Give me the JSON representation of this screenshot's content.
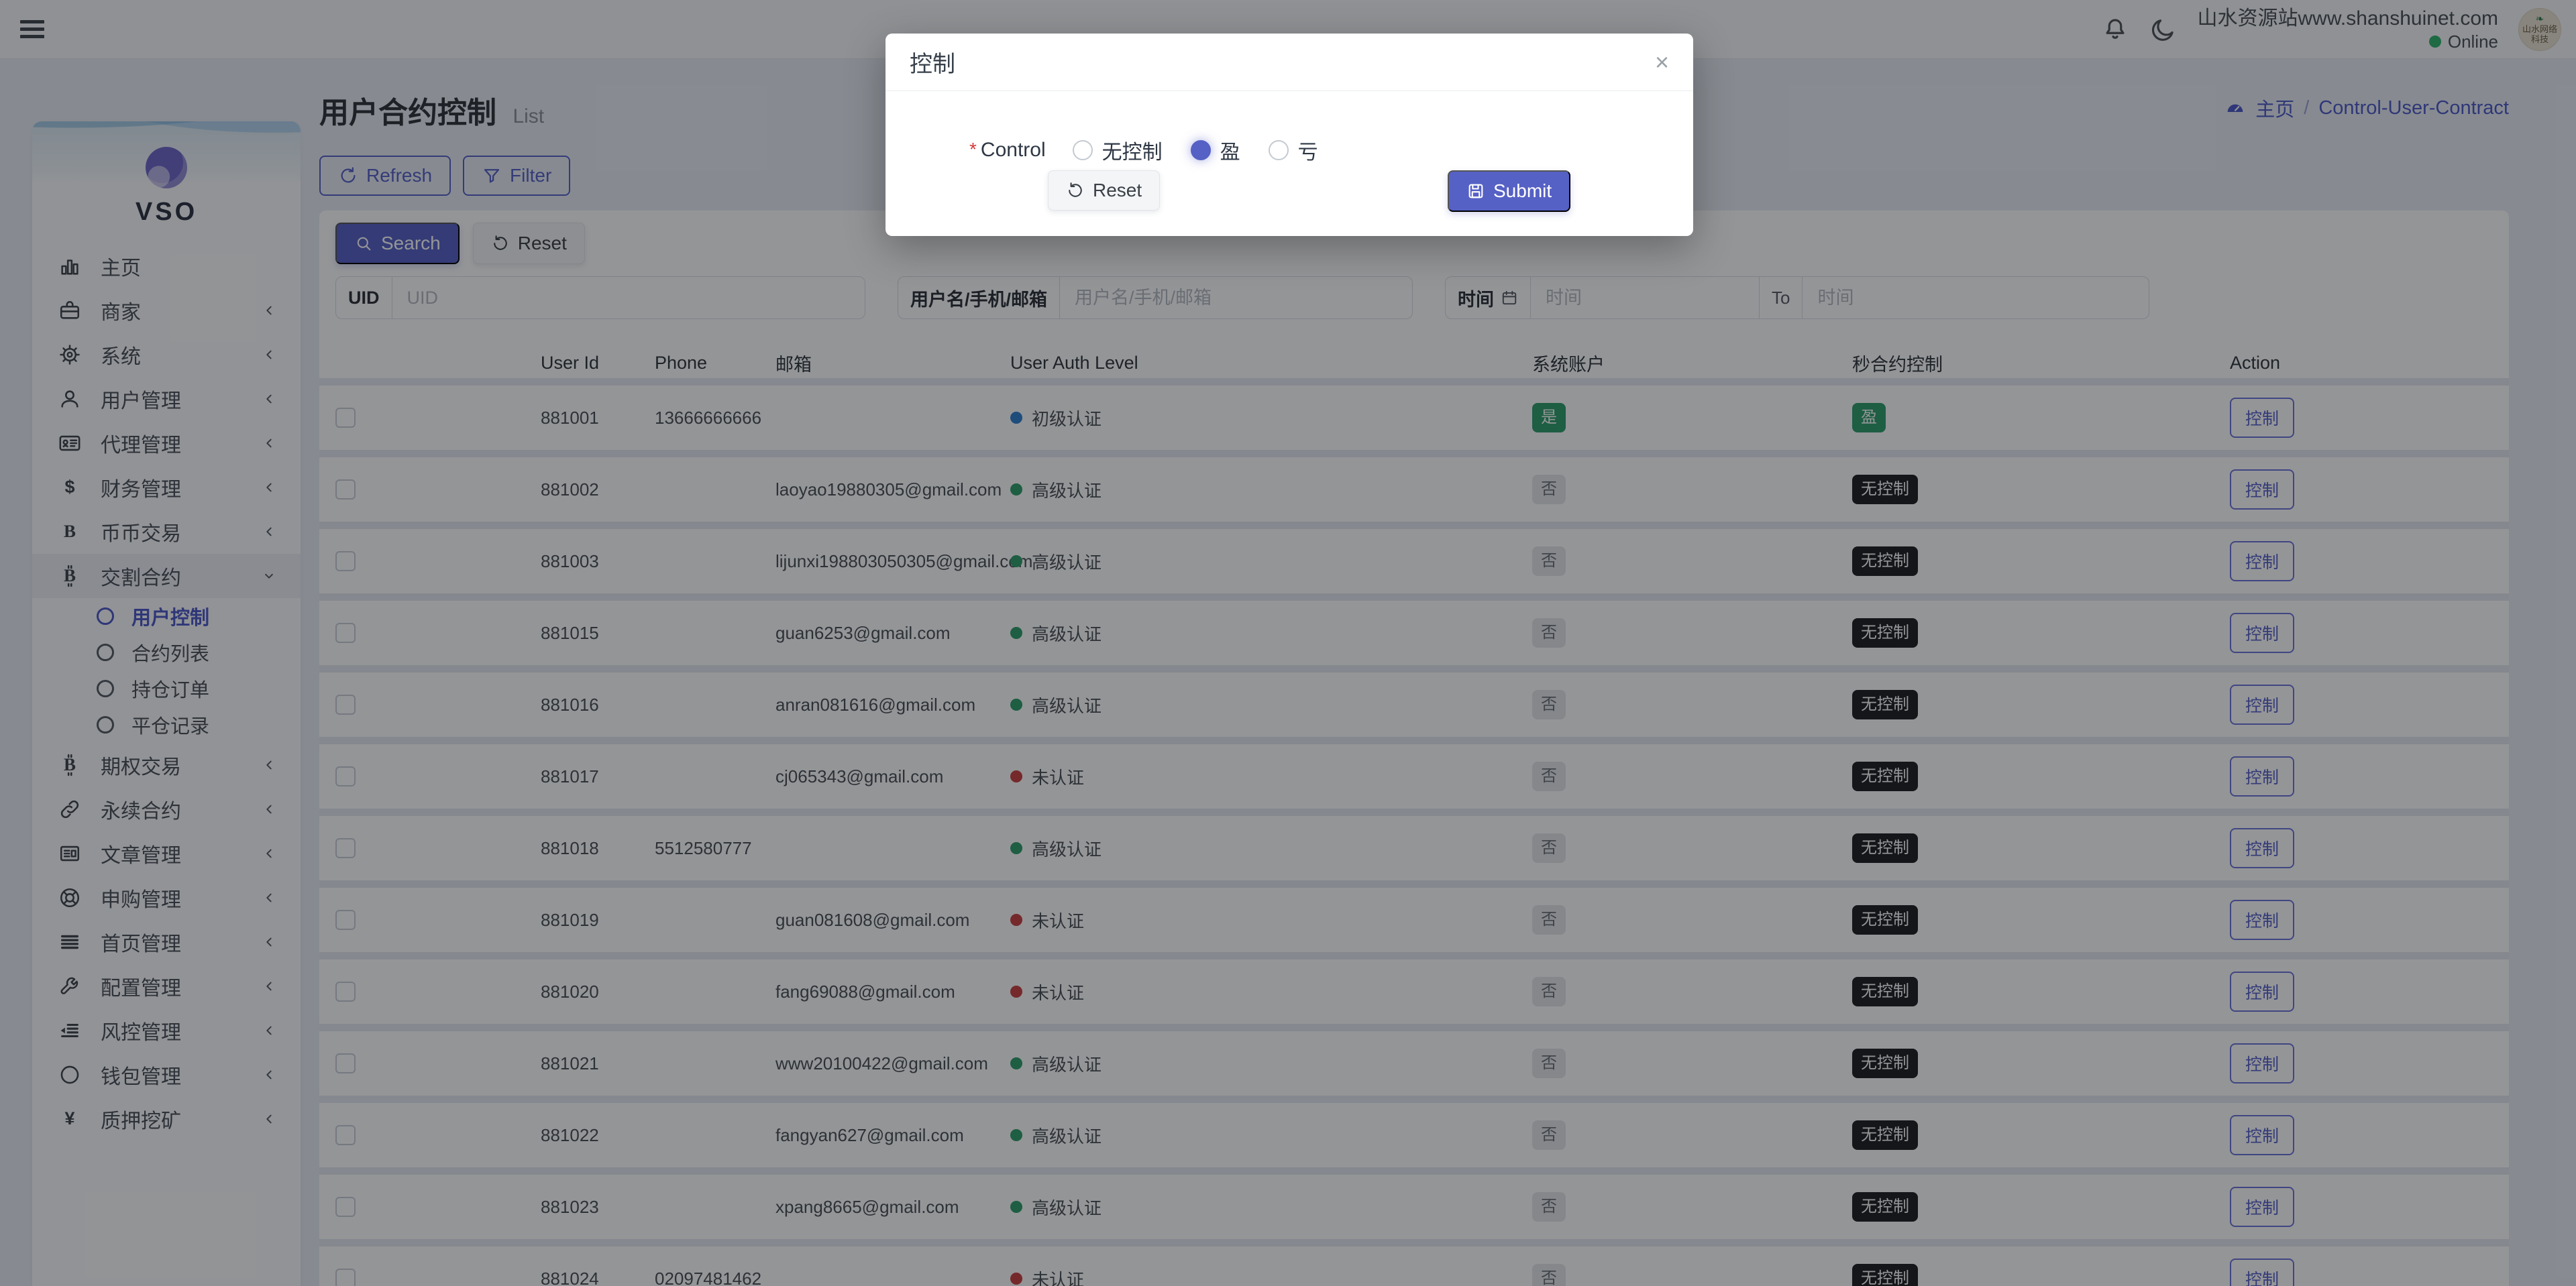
{
  "topbar": {
    "site_label": "山水资源站www.shanshuinet.com",
    "status_label": "Online",
    "avatar_text": "山水网络科技"
  },
  "sidebar": {
    "logo_text": "VSO",
    "items": [
      {
        "icon": "bars",
        "label": "主页"
      },
      {
        "icon": "merchant",
        "label": "商家",
        "chevron": true
      },
      {
        "icon": "gear",
        "label": "系统",
        "chevron": true
      },
      {
        "icon": "user",
        "label": "用户管理",
        "chevron": true
      },
      {
        "icon": "idcard",
        "label": "代理管理",
        "chevron": true
      },
      {
        "icon": "dollar",
        "label": "财务管理",
        "chevron": true
      },
      {
        "icon": "bletter",
        "label": "币币交易",
        "chevron": true
      },
      {
        "icon": "btc",
        "label": "交割合约",
        "expanded": true,
        "children": [
          {
            "label": "用户控制",
            "active": true
          },
          {
            "label": "合约列表"
          },
          {
            "label": "持仓订单"
          },
          {
            "label": "平仓记录"
          }
        ]
      },
      {
        "icon": "btc",
        "label": "期权交易",
        "chevron": true
      },
      {
        "icon": "link",
        "label": "永续合约",
        "chevron": true
      },
      {
        "icon": "news",
        "label": "文章管理",
        "chevron": true
      },
      {
        "icon": "ring",
        "label": "申购管理",
        "chevron": true
      },
      {
        "icon": "lines",
        "label": "首页管理",
        "chevron": true
      },
      {
        "icon": "wrench",
        "label": "配置管理",
        "chevron": true
      },
      {
        "icon": "indent",
        "label": "风控管理",
        "chevron": true
      },
      {
        "icon": "circle",
        "label": "钱包管理",
        "chevron": true
      },
      {
        "icon": "yen",
        "label": "质押挖矿",
        "chevron": true
      }
    ]
  },
  "page": {
    "title": "用户合约控制",
    "subtitle": "List",
    "breadcrumb_home": "主页",
    "breadcrumb_sep": "/",
    "breadcrumb_current": "Control-User-Contract",
    "refresh_label": "Refresh",
    "filter_label": "Filter"
  },
  "filters": {
    "search_label": "Search",
    "reset_label": "Reset",
    "uid_label": "UID",
    "uid_placeholder": "UID",
    "user_label": "用户名/手机/邮箱",
    "user_placeholder": "用户名/手机/邮箱",
    "time_label": "时间",
    "time_placeholder": "时间",
    "to_label": "To",
    "time2_placeholder": "时间"
  },
  "table": {
    "columns": [
      "",
      "User Id",
      "Phone",
      "邮箱",
      "User Auth Level",
      "系统账户",
      "秒合约控制",
      "Action"
    ],
    "action_label": "控制",
    "rows": [
      {
        "id": "881001",
        "phone": "13666666666",
        "email": "",
        "auth": {
          "text": "初级认证",
          "variant": "blue"
        },
        "system": {
          "text": "是",
          "variant": "green"
        },
        "control": {
          "text": "盈",
          "variant": "green"
        }
      },
      {
        "id": "881002",
        "phone": "",
        "email": "laoyao19880305@gmail.com",
        "auth": {
          "text": "高级认证",
          "variant": "green"
        },
        "system": {
          "text": "否",
          "variant": "muted"
        },
        "control": {
          "text": "无控制",
          "variant": "dark"
        }
      },
      {
        "id": "881003",
        "phone": "",
        "email": "lijunxi198803050305@gmail.com",
        "auth": {
          "text": "高级认证",
          "variant": "green"
        },
        "system": {
          "text": "否",
          "variant": "muted"
        },
        "control": {
          "text": "无控制",
          "variant": "dark"
        }
      },
      {
        "id": "881015",
        "phone": "",
        "email": "guan6253@gmail.com",
        "auth": {
          "text": "高级认证",
          "variant": "green"
        },
        "system": {
          "text": "否",
          "variant": "muted"
        },
        "control": {
          "text": "无控制",
          "variant": "dark"
        }
      },
      {
        "id": "881016",
        "phone": "",
        "email": "anran081616@gmail.com",
        "auth": {
          "text": "高级认证",
          "variant": "green"
        },
        "system": {
          "text": "否",
          "variant": "muted"
        },
        "control": {
          "text": "无控制",
          "variant": "dark"
        }
      },
      {
        "id": "881017",
        "phone": "",
        "email": "cj065343@gmail.com",
        "auth": {
          "text": "未认证",
          "variant": "red"
        },
        "system": {
          "text": "否",
          "variant": "muted"
        },
        "control": {
          "text": "无控制",
          "variant": "dark"
        }
      },
      {
        "id": "881018",
        "phone": "5512580777",
        "email": "",
        "auth": {
          "text": "高级认证",
          "variant": "green"
        },
        "system": {
          "text": "否",
          "variant": "muted"
        },
        "control": {
          "text": "无控制",
          "variant": "dark"
        }
      },
      {
        "id": "881019",
        "phone": "",
        "email": "guan081608@gmail.com",
        "auth": {
          "text": "未认证",
          "variant": "red"
        },
        "system": {
          "text": "否",
          "variant": "muted"
        },
        "control": {
          "text": "无控制",
          "variant": "dark"
        }
      },
      {
        "id": "881020",
        "phone": "",
        "email": "fang69088@gmail.com",
        "auth": {
          "text": "未认证",
          "variant": "red"
        },
        "system": {
          "text": "否",
          "variant": "muted"
        },
        "control": {
          "text": "无控制",
          "variant": "dark"
        }
      },
      {
        "id": "881021",
        "phone": "",
        "email": "www20100422@gmail.com",
        "auth": {
          "text": "高级认证",
          "variant": "green"
        },
        "system": {
          "text": "否",
          "variant": "muted"
        },
        "control": {
          "text": "无控制",
          "variant": "dark"
        }
      },
      {
        "id": "881022",
        "phone": "",
        "email": "fangyan627@gmail.com",
        "auth": {
          "text": "高级认证",
          "variant": "green"
        },
        "system": {
          "text": "否",
          "variant": "muted"
        },
        "control": {
          "text": "无控制",
          "variant": "dark"
        }
      },
      {
        "id": "881023",
        "phone": "",
        "email": "xpang8665@gmail.com",
        "auth": {
          "text": "高级认证",
          "variant": "green"
        },
        "system": {
          "text": "否",
          "variant": "muted"
        },
        "control": {
          "text": "无控制",
          "variant": "dark"
        }
      },
      {
        "id": "881024",
        "phone": "02097481462",
        "email": "",
        "auth": {
          "text": "未认证",
          "variant": "red"
        },
        "system": {
          "text": "否",
          "variant": "muted"
        },
        "control": {
          "text": "无控制",
          "variant": "dark"
        }
      }
    ]
  },
  "modal": {
    "title": "控制",
    "close_label": "×",
    "field_label": "Control",
    "required_mark": "*",
    "options": [
      {
        "label": "无控制",
        "checked": false
      },
      {
        "label": "盈",
        "checked": true
      },
      {
        "label": "亏",
        "checked": false
      }
    ],
    "reset_label": "Reset",
    "submit_label": "Submit"
  },
  "colors": {
    "accent": "#5661c5",
    "success": "#2e9e6b",
    "danger": "#c84040",
    "info_blue": "#2f80d0",
    "dark_badge": "#1d1f21",
    "online_dot": "#2fb36b"
  }
}
